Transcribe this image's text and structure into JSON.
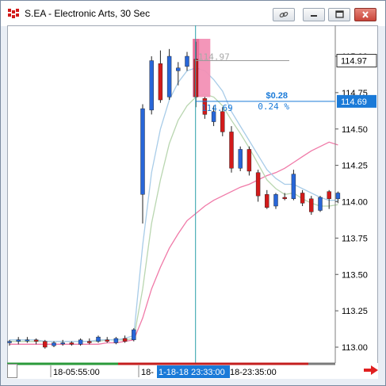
{
  "window": {
    "title": "S.EA - Electronic Arts, 30 Sec",
    "icon": "chart-app-icon",
    "buttons": [
      "link-icon",
      "minimize-icon",
      "restore-icon",
      "close-icon"
    ]
  },
  "colors": {
    "up": "#2866d8",
    "down": "#d21a1a",
    "ma_fast": "#a8cce8",
    "ma_mid": "#b9d6b0",
    "ma_slow": "#f07aa8",
    "cursor": "#2aa0a8",
    "measure": "#1a7ad8",
    "highlight": "#e8407a",
    "price_label_bg": "#ffffff",
    "current_price_bg": "#1a7ad8"
  },
  "axis": {
    "y_ticks": [
      "115.00",
      "114.75",
      "114.50",
      "114.25",
      "114.00",
      "113.75",
      "113.50",
      "113.25",
      "113.00"
    ],
    "last_price_label": "114.97",
    "cursor_price_label": "114.69",
    "x_labels": [
      "18-05:55:00",
      "18-",
      "1-18-18 23:33:00",
      "18-23:35:00"
    ]
  },
  "annotations": {
    "ref_price": "114.97",
    "cursor_price": "114.69",
    "delta_value": "$0.28",
    "delta_percent": "0.24 %"
  },
  "chart_data": {
    "type": "candlestick",
    "title": "S.EA - Electronic Arts, 30 Sec",
    "ylim": [
      112.95,
      115.15
    ],
    "candles": [
      {
        "o": 113.03,
        "h": 113.05,
        "l": 113.01,
        "c": 113.04
      },
      {
        "o": 113.04,
        "h": 113.07,
        "l": 113.02,
        "c": 113.05
      },
      {
        "o": 113.05,
        "h": 113.07,
        "l": 113.03,
        "c": 113.05
      },
      {
        "o": 113.05,
        "h": 113.06,
        "l": 113.02,
        "c": 113.04
      },
      {
        "o": 113.04,
        "h": 113.05,
        "l": 112.99,
        "c": 113.0
      },
      {
        "o": 113.01,
        "h": 113.04,
        "l": 113.0,
        "c": 113.03
      },
      {
        "o": 113.03,
        "h": 113.05,
        "l": 113.01,
        "c": 113.03
      },
      {
        "o": 113.03,
        "h": 113.04,
        "l": 113.01,
        "c": 113.02
      },
      {
        "o": 113.02,
        "h": 113.06,
        "l": 113.01,
        "c": 113.05
      },
      {
        "o": 113.04,
        "h": 113.06,
        "l": 113.02,
        "c": 113.03
      },
      {
        "o": 113.04,
        "h": 113.08,
        "l": 113.03,
        "c": 113.07
      },
      {
        "o": 113.05,
        "h": 113.07,
        "l": 113.03,
        "c": 113.04
      },
      {
        "o": 113.03,
        "h": 113.07,
        "l": 113.02,
        "c": 113.06
      },
      {
        "o": 113.06,
        "h": 113.08,
        "l": 113.03,
        "c": 113.04
      },
      {
        "o": 113.05,
        "h": 113.13,
        "l": 113.04,
        "c": 113.12
      },
      {
        "o": 114.05,
        "h": 114.67,
        "l": 113.85,
        "c": 114.64
      },
      {
        "o": 114.63,
        "h": 115.0,
        "l": 114.6,
        "c": 114.97
      },
      {
        "o": 114.95,
        "h": 115.04,
        "l": 114.68,
        "c": 114.7
      },
      {
        "o": 114.72,
        "h": 115.05,
        "l": 114.7,
        "c": 115.0
      },
      {
        "o": 114.9,
        "h": 114.96,
        "l": 114.8,
        "c": 114.92
      },
      {
        "o": 114.93,
        "h": 115.03,
        "l": 114.9,
        "c": 115.0
      },
      {
        "o": 114.98,
        "h": 115.1,
        "l": 114.65,
        "c": 114.72
      },
      {
        "o": 114.71,
        "h": 114.72,
        "l": 114.57,
        "c": 114.6
      },
      {
        "o": 114.55,
        "h": 114.66,
        "l": 114.52,
        "c": 114.62
      },
      {
        "o": 114.62,
        "h": 114.65,
        "l": 114.45,
        "c": 114.48
      },
      {
        "o": 114.48,
        "h": 114.52,
        "l": 114.2,
        "c": 114.23
      },
      {
        "o": 114.23,
        "h": 114.38,
        "l": 114.21,
        "c": 114.36
      },
      {
        "o": 114.36,
        "h": 114.38,
        "l": 114.18,
        "c": 114.21
      },
      {
        "o": 114.2,
        "h": 114.22,
        "l": 114.0,
        "c": 114.04
      },
      {
        "o": 114.05,
        "h": 114.08,
        "l": 113.95,
        "c": 113.96
      },
      {
        "o": 113.97,
        "h": 114.06,
        "l": 113.95,
        "c": 114.05
      },
      {
        "o": 114.03,
        "h": 114.06,
        "l": 114.01,
        "c": 114.02
      },
      {
        "o": 114.02,
        "h": 114.22,
        "l": 114.01,
        "c": 114.19
      },
      {
        "o": 114.06,
        "h": 114.08,
        "l": 113.97,
        "c": 113.99
      },
      {
        "o": 114.02,
        "h": 114.04,
        "l": 113.91,
        "c": 113.93
      },
      {
        "o": 113.94,
        "h": 114.04,
        "l": 113.93,
        "c": 114.03
      },
      {
        "o": 114.07,
        "h": 114.08,
        "l": 113.95,
        "c": 114.02
      },
      {
        "o": 114.02,
        "h": 114.07,
        "l": 113.99,
        "c": 114.06
      }
    ],
    "ma_fast": [
      113.05,
      113.05,
      113.05,
      113.05,
      113.04,
      113.04,
      113.04,
      113.04,
      113.04,
      113.04,
      113.05,
      113.05,
      113.05,
      113.06,
      113.08,
      113.7,
      114.2,
      114.5,
      114.7,
      114.82,
      114.9,
      114.92,
      114.9,
      114.84,
      114.76,
      114.62,
      114.52,
      114.42,
      114.32,
      114.22,
      114.16,
      114.12,
      114.12,
      114.09,
      114.06,
      114.03,
      114.01,
      114.01
    ],
    "ma_mid": [
      113.04,
      113.04,
      113.04,
      113.04,
      113.04,
      113.04,
      113.04,
      113.04,
      113.04,
      113.04,
      113.04,
      113.05,
      113.05,
      113.05,
      113.06,
      113.4,
      113.85,
      114.15,
      114.4,
      114.56,
      114.66,
      114.72,
      114.74,
      114.72,
      114.66,
      114.56,
      114.47,
      114.37,
      114.26,
      114.15,
      114.09,
      114.05,
      114.06,
      114.02,
      113.99,
      113.97,
      113.97,
      113.98
    ],
    "ma_slow": [
      113.02,
      113.02,
      113.02,
      113.02,
      113.02,
      113.02,
      113.02,
      113.02,
      113.02,
      113.02,
      113.02,
      113.03,
      113.03,
      113.04,
      113.05,
      113.2,
      113.4,
      113.55,
      113.68,
      113.78,
      113.87,
      113.92,
      113.97,
      114.01,
      114.04,
      114.07,
      114.1,
      114.12,
      114.15,
      114.18,
      114.2,
      114.23,
      114.27,
      114.31,
      114.35,
      114.38,
      114.41,
      114.39
    ]
  }
}
